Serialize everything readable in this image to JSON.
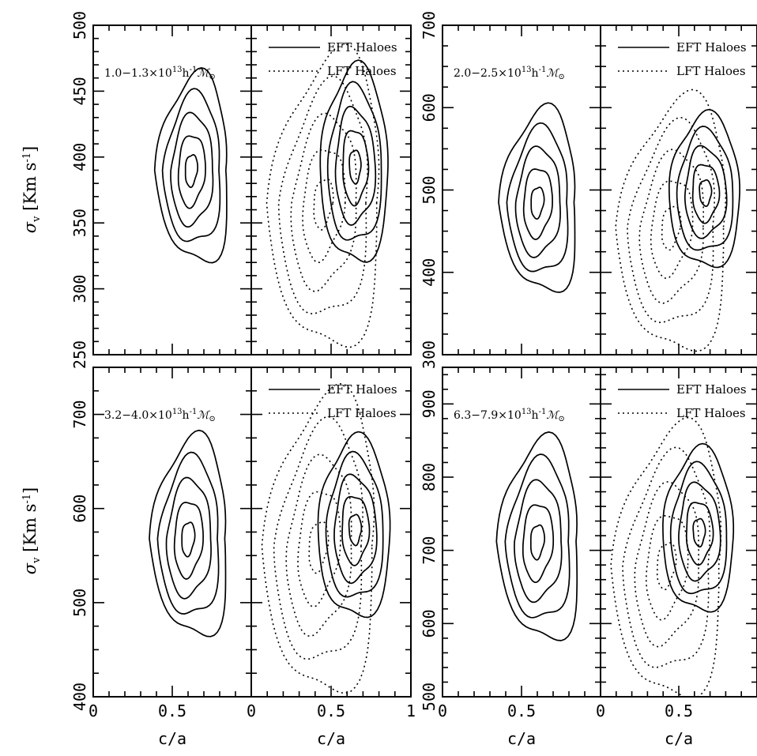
{
  "chart_data": [
    {
      "type": "contour",
      "panel": "top-left",
      "mass_label": "1.0−1.3×10¹³h⁻¹M⊙",
      "xlabel": "",
      "ylabel": "σv [Km s⁻¹]",
      "xlim": [
        0,
        1
      ],
      "ylim": [
        250,
        500
      ],
      "yticks": [
        250,
        300,
        350,
        400,
        450,
        500
      ],
      "series": [
        {
          "name": "EFT Haloes",
          "style": "solid",
          "center": [
            0.62,
            390
          ],
          "sigma": [
            0.085,
            27
          ],
          "tilt": 0.35,
          "levels": 5
        }
      ]
    },
    {
      "type": "contour",
      "panel": "top-left-right",
      "xlim": [
        0,
        1
      ],
      "ylim": [
        250,
        500
      ],
      "legend": [
        "EFT Haloes",
        "LFT Haloes"
      ],
      "series": [
        {
          "name": "EFT Haloes",
          "style": "solid",
          "center": [
            0.65,
            393
          ],
          "sigma": [
            0.08,
            28
          ],
          "tilt": 0.0,
          "levels": 5
        },
        {
          "name": "LFT Haloes",
          "style": "dotted",
          "center": [
            0.45,
            365
          ],
          "sigma": [
            0.13,
            42
          ],
          "tilt": 0.55,
          "levels": 5
        }
      ]
    },
    {
      "type": "contour",
      "panel": "top-right",
      "mass_label": "2.0−2.5×10¹³h⁻¹M⊙",
      "xlim": [
        0,
        1
      ],
      "ylim": [
        300,
        700
      ],
      "yticks": [
        300,
        400,
        500,
        600,
        700
      ],
      "series": [
        {
          "name": "EFT Haloes",
          "style": "solid",
          "center": [
            0.6,
            485
          ],
          "sigma": [
            0.09,
            42
          ],
          "tilt": 0.35,
          "levels": 5
        }
      ]
    },
    {
      "type": "contour",
      "panel": "top-right-right",
      "xlim": [
        0,
        1
      ],
      "ylim": [
        300,
        700
      ],
      "legend": [
        "EFT Haloes",
        "LFT Haloes"
      ],
      "series": [
        {
          "name": "EFT Haloes",
          "style": "solid",
          "center": [
            0.67,
            497
          ],
          "sigma": [
            0.085,
            35
          ],
          "tilt": 0.0,
          "levels": 5
        },
        {
          "name": "LFT Haloes",
          "style": "dotted",
          "center": [
            0.45,
            455
          ],
          "sigma": [
            0.13,
            58
          ],
          "tilt": 0.55,
          "levels": 5
        }
      ]
    },
    {
      "type": "contour",
      "panel": "bottom-left",
      "mass_label": "3.2−4.0×10¹³h⁻¹M⊙",
      "xlabel": "c/a",
      "ylabel": "σv [Km s⁻¹]",
      "xlim": [
        0,
        1
      ],
      "ylim": [
        400,
        750
      ],
      "yticks": [
        400,
        500,
        600,
        700
      ],
      "xticks": [
        0,
        0.5
      ],
      "series": [
        {
          "name": "EFT Haloes",
          "style": "solid",
          "center": [
            0.6,
            568
          ],
          "sigma": [
            0.09,
            40
          ],
          "tilt": 0.35,
          "levels": 5
        }
      ]
    },
    {
      "type": "contour",
      "panel": "bottom-left-right",
      "xlabel": "c/a",
      "xlim": [
        0,
        1
      ],
      "ylim": [
        400,
        750
      ],
      "xticks": [
        0,
        0.5,
        1
      ],
      "legend": [
        "EFT Haloes",
        "LFT Haloes"
      ],
      "series": [
        {
          "name": "EFT Haloes",
          "style": "solid",
          "center": [
            0.65,
            578
          ],
          "sigma": [
            0.085,
            36
          ],
          "tilt": 0.0,
          "levels": 5
        },
        {
          "name": "LFT Haloes",
          "style": "dotted",
          "center": [
            0.42,
            560
          ],
          "sigma": [
            0.13,
            60
          ],
          "tilt": 0.55,
          "levels": 5
        }
      ]
    },
    {
      "type": "contour",
      "panel": "bottom-right",
      "mass_label": "6.3−7.9×10¹³h⁻¹M⊙",
      "xlabel": "c/a",
      "xlim": [
        0,
        1
      ],
      "ylim": [
        500,
        950
      ],
      "yticks": [
        500,
        600,
        700,
        800,
        900
      ],
      "xticks": [
        0,
        0.5
      ],
      "series": [
        {
          "name": "EFT Haloes",
          "style": "solid",
          "center": [
            0.6,
            712
          ],
          "sigma": [
            0.095,
            52
          ],
          "tilt": 0.35,
          "levels": 5
        }
      ]
    },
    {
      "type": "contour",
      "panel": "bottom-right-right",
      "xlabel": "c/a",
      "xlim": [
        0,
        1
      ],
      "ylim": [
        500,
        950
      ],
      "xticks": [
        0,
        0.5
      ],
      "legend": [
        "EFT Haloes",
        "LFT Haloes"
      ],
      "series": [
        {
          "name": "EFT Haloes",
          "style": "solid",
          "center": [
            0.63,
            725
          ],
          "sigma": [
            0.085,
            42
          ],
          "tilt": 0.0,
          "levels": 5
        },
        {
          "name": "LFT Haloes",
          "style": "dotted",
          "center": [
            0.42,
            680
          ],
          "sigma": [
            0.13,
            70
          ],
          "tilt": 0.55,
          "levels": 5
        }
      ]
    }
  ],
  "text": {
    "ylabel": "σ",
    "ylabel_sub": "v",
    "ylabel_unit": " [Km s",
    "ylabel_exp": "-1",
    "ylabel_close": "]",
    "xlabel": "c/a",
    "legend_eft": "EFT Haloes",
    "legend_lft": "LFT Haloes",
    "mass": [
      {
        "pre": "1.0−1.3×10",
        "exp": "13",
        "mid": "h",
        "exp2": "-1",
        "sym": "ℳ",
        "sub": "⊙"
      },
      {
        "pre": "2.0−2.5×10",
        "exp": "13",
        "mid": "h",
        "exp2": "-1",
        "sym": "ℳ",
        "sub": "⊙"
      },
      {
        "pre": "3.2−4.0×10",
        "exp": "13",
        "mid": "h",
        "exp2": "-1",
        "sym": "ℳ",
        "sub": "⊙"
      },
      {
        "pre": "6.3−7.9×10",
        "exp": "13",
        "mid": "h",
        "exp2": "-1",
        "sym": "ℳ",
        "sub": "⊙"
      }
    ]
  }
}
